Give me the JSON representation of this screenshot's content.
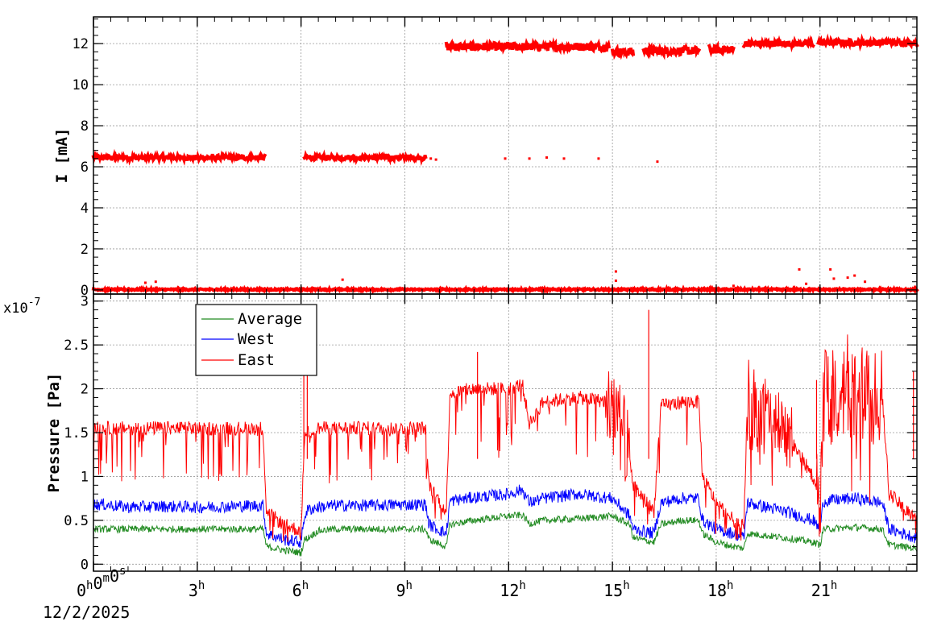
{
  "chart_data": [
    {
      "type": "scatter",
      "ylabel": "I [mA]",
      "ylim": [
        -0.2,
        13.3
      ],
      "yticks": [
        0,
        2,
        4,
        6,
        8,
        10,
        12
      ],
      "xlim_hours": [
        0,
        23.8
      ],
      "grid": true,
      "series": [
        {
          "color": "#ff0000",
          "segments": [
            {
              "x0": 0.0,
              "x1": 4.95,
              "y": 6.45,
              "jitter": 0.12
            },
            {
              "x0": 6.1,
              "x1": 9.6,
              "y": 6.45,
              "jitter": 0.12
            },
            {
              "x0": 10.2,
              "x1": 14.9,
              "y": 11.85,
              "jitter": 0.2
            },
            {
              "x0": 15.0,
              "x1": 15.6,
              "y": 11.6,
              "jitter": 0.2
            },
            {
              "x0": 15.9,
              "x1": 17.5,
              "y": 11.65,
              "jitter": 0.2
            },
            {
              "x0": 17.8,
              "x1": 18.5,
              "y": 11.7,
              "jitter": 0.2
            },
            {
              "x0": 18.8,
              "x1": 20.8,
              "y": 12.0,
              "jitter": 0.15
            },
            {
              "x0": 20.95,
              "x1": 23.8,
              "y": 12.05,
              "jitter": 0.15
            },
            {
              "x0": 0.0,
              "x1": 23.8,
              "y": 0.02,
              "jitter": 0.04
            }
          ],
          "points": [
            {
              "x": 9.75,
              "y": 6.4
            },
            {
              "x": 9.9,
              "y": 6.35
            },
            {
              "x": 11.9,
              "y": 6.4
            },
            {
              "x": 12.6,
              "y": 6.4
            },
            {
              "x": 13.1,
              "y": 6.45
            },
            {
              "x": 13.6,
              "y": 6.4
            },
            {
              "x": 14.6,
              "y": 6.4
            },
            {
              "x": 16.3,
              "y": 6.25
            },
            {
              "x": 1.5,
              "y": 0.35
            },
            {
              "x": 1.8,
              "y": 0.4
            },
            {
              "x": 7.2,
              "y": 0.5
            },
            {
              "x": 15.1,
              "y": 0.9
            },
            {
              "x": 15.1,
              "y": 0.45
            },
            {
              "x": 20.4,
              "y": 1.0
            },
            {
              "x": 21.3,
              "y": 1.0
            },
            {
              "x": 21.4,
              "y": 0.55
            },
            {
              "x": 21.8,
              "y": 0.6
            },
            {
              "x": 22.0,
              "y": 0.7
            },
            {
              "x": 22.3,
              "y": 0.4
            },
            {
              "x": 20.6,
              "y": 0.3
            },
            {
              "x": 18.5,
              "y": 0.2
            }
          ]
        }
      ]
    },
    {
      "type": "line",
      "ylabel": "Pressure [Pa]",
      "yexponent": "x10",
      "yexponent_power": "-7",
      "ylim": [
        -0.08,
        3.08
      ],
      "yticks": [
        0,
        0.5,
        1,
        1.5,
        2,
        2.5,
        3
      ],
      "yticklabels": [
        "0",
        "0.5",
        "1",
        "1.5",
        "2",
        "2.5",
        "3"
      ],
      "xlim_hours": [
        0,
        23.8
      ],
      "grid": true,
      "legend_placement": "top-left",
      "series": [
        {
          "name": "Average",
          "color": "#228b22",
          "x": [
            0,
            0.3,
            1.0,
            2.0,
            3.0,
            4.0,
            4.9,
            5.0,
            5.5,
            6.0,
            6.1,
            6.2,
            6.5,
            7.0,
            8.0,
            9.0,
            9.6,
            9.7,
            10.2,
            10.3,
            11.0,
            12.0,
            12.4,
            12.6,
            13.0,
            14.0,
            15.0,
            15.5,
            15.6,
            16.2,
            16.4,
            17.0,
            17.5,
            17.6,
            18.0,
            18.5,
            18.8,
            18.9,
            20.0,
            20.8,
            21.0,
            21.1,
            22.0,
            22.8,
            23.0,
            23.8
          ],
          "y": [
            0.4,
            0.4,
            0.4,
            0.4,
            0.4,
            0.4,
            0.4,
            0.2,
            0.16,
            0.13,
            0.28,
            0.3,
            0.38,
            0.4,
            0.4,
            0.4,
            0.4,
            0.28,
            0.2,
            0.45,
            0.5,
            0.55,
            0.56,
            0.46,
            0.5,
            0.52,
            0.55,
            0.45,
            0.3,
            0.25,
            0.45,
            0.5,
            0.5,
            0.35,
            0.25,
            0.2,
            0.18,
            0.35,
            0.3,
            0.25,
            0.22,
            0.4,
            0.42,
            0.4,
            0.22,
            0.18
          ],
          "noise": 0.04
        },
        {
          "name": "West",
          "color": "#0000ff",
          "x": [
            0,
            0.3,
            1.0,
            2.0,
            3.0,
            4.0,
            4.9,
            5.0,
            5.5,
            6.0,
            6.1,
            6.2,
            6.5,
            7.0,
            8.0,
            9.0,
            9.6,
            9.7,
            10.2,
            10.3,
            11.0,
            12.0,
            12.4,
            12.6,
            13.0,
            14.0,
            15.0,
            15.5,
            15.6,
            16.2,
            16.4,
            17.0,
            17.5,
            17.6,
            18.0,
            18.5,
            18.8,
            18.9,
            20.0,
            20.8,
            21.0,
            21.1,
            22.0,
            22.8,
            23.0,
            23.8
          ],
          "y": [
            0.68,
            0.68,
            0.65,
            0.66,
            0.65,
            0.66,
            0.67,
            0.35,
            0.28,
            0.25,
            0.55,
            0.62,
            0.65,
            0.67,
            0.67,
            0.68,
            0.68,
            0.45,
            0.35,
            0.72,
            0.76,
            0.8,
            0.85,
            0.7,
            0.75,
            0.8,
            0.75,
            0.55,
            0.4,
            0.35,
            0.7,
            0.75,
            0.75,
            0.5,
            0.4,
            0.35,
            0.3,
            0.7,
            0.6,
            0.5,
            0.4,
            0.72,
            0.75,
            0.7,
            0.4,
            0.3
          ],
          "noise": 0.07
        },
        {
          "name": "East",
          "color": "#ff0000",
          "x": [
            0,
            0.3,
            1.0,
            2.0,
            3.0,
            4.0,
            4.9,
            5.0,
            5.5,
            6.0,
            6.1,
            6.2,
            6.5,
            7.0,
            8.0,
            9.0,
            9.6,
            9.7,
            10.2,
            10.3,
            11.0,
            12.0,
            12.4,
            12.6,
            13.0,
            14.0,
            15.0,
            15.5,
            15.6,
            16.2,
            16.4,
            17.0,
            17.5,
            17.6,
            18.0,
            18.5,
            18.8,
            18.9,
            20.0,
            20.8,
            21.0,
            21.1,
            22.0,
            22.8,
            23.0,
            23.8
          ],
          "y": [
            1.55,
            1.55,
            1.55,
            1.55,
            1.55,
            1.55,
            1.55,
            0.6,
            0.45,
            0.38,
            1.45,
            1.5,
            1.55,
            1.55,
            1.55,
            1.55,
            1.55,
            0.9,
            0.6,
            1.95,
            2.0,
            2.0,
            2.05,
            1.6,
            1.85,
            1.9,
            1.85,
            1.2,
            0.9,
            0.6,
            1.8,
            1.85,
            1.85,
            1.0,
            0.7,
            0.5,
            0.45,
            1.85,
            1.5,
            1.0,
            0.6,
            1.95,
            2.05,
            1.9,
            0.8,
            0.5
          ],
          "noise": 0.08
        }
      ],
      "spikes": [
        {
          "x": 6.08,
          "y": 2.9
        },
        {
          "x": 6.18,
          "y": 2.27
        },
        {
          "x": 11.1,
          "y": 2.42
        },
        {
          "x": 16.05,
          "y": 2.9
        },
        {
          "x": 20.9,
          "y": 2.1
        },
        {
          "x": 23.7,
          "y": 2.2
        }
      ]
    }
  ],
  "x_axis": {
    "ticks": [
      {
        "hours": 0,
        "main": "0",
        "sup": "h",
        "main2": "0",
        "sup2": "m",
        "main3": "0",
        "sup3": "s"
      },
      {
        "hours": 3,
        "main": "3",
        "sup": "h"
      },
      {
        "hours": 6,
        "main": "6",
        "sup": "h"
      },
      {
        "hours": 9,
        "main": "9",
        "sup": "h"
      },
      {
        "hours": 12,
        "main": "12",
        "sup": "h"
      },
      {
        "hours": 15,
        "main": "15",
        "sup": "h"
      },
      {
        "hours": 18,
        "main": "18",
        "sup": "h"
      },
      {
        "hours": 21,
        "main": "21",
        "sup": "h"
      }
    ],
    "date_label": "12/2/2025"
  },
  "legend": {
    "items": [
      {
        "label": "Average",
        "color": "#228b22"
      },
      {
        "label": "West",
        "color": "#0000ff"
      },
      {
        "label": "East",
        "color": "#ff0000"
      }
    ]
  }
}
